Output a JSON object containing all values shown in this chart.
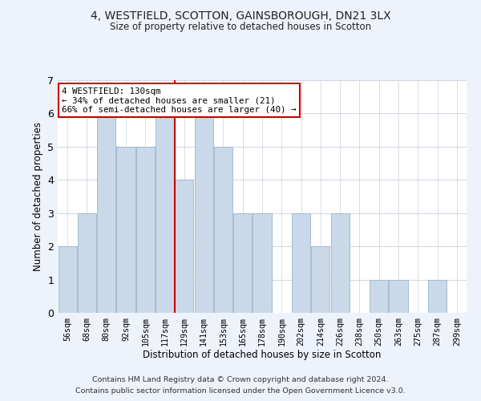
{
  "title1": "4, WESTFIELD, SCOTTON, GAINSBOROUGH, DN21 3LX",
  "title2": "Size of property relative to detached houses in Scotton",
  "xlabel": "Distribution of detached houses by size in Scotton",
  "ylabel": "Number of detached properties",
  "bin_labels": [
    "56sqm",
    "68sqm",
    "80sqm",
    "92sqm",
    "105sqm",
    "117sqm",
    "129sqm",
    "141sqm",
    "153sqm",
    "165sqm",
    "178sqm",
    "190sqm",
    "202sqm",
    "214sqm",
    "226sqm",
    "238sqm",
    "250sqm",
    "263sqm",
    "275sqm",
    "287sqm",
    "299sqm"
  ],
  "bar_heights": [
    2,
    3,
    6,
    5,
    5,
    6,
    4,
    6,
    5,
    3,
    3,
    0,
    3,
    2,
    3,
    0,
    1,
    1,
    0,
    1,
    0
  ],
  "bar_color": "#c9d9ea",
  "bar_edgecolor": "#9ab5cc",
  "vline_x_index": 6,
  "vline_color": "#cc0000",
  "ylim": [
    0,
    7
  ],
  "yticks": [
    0,
    1,
    2,
    3,
    4,
    5,
    6,
    7
  ],
  "annotation_title": "4 WESTFIELD: 130sqm",
  "annotation_line1": "← 34% of detached houses are smaller (21)",
  "annotation_line2": "66% of semi-detached houses are larger (40) →",
  "annotation_box_color": "#ffffff",
  "annotation_box_edgecolor": "#cc0000",
  "footnote1": "Contains HM Land Registry data © Crown copyright and database right 2024.",
  "footnote2": "Contains public sector information licensed under the Open Government Licence v3.0.",
  "background_color": "#eef2fb",
  "plot_background": "#ffffff"
}
